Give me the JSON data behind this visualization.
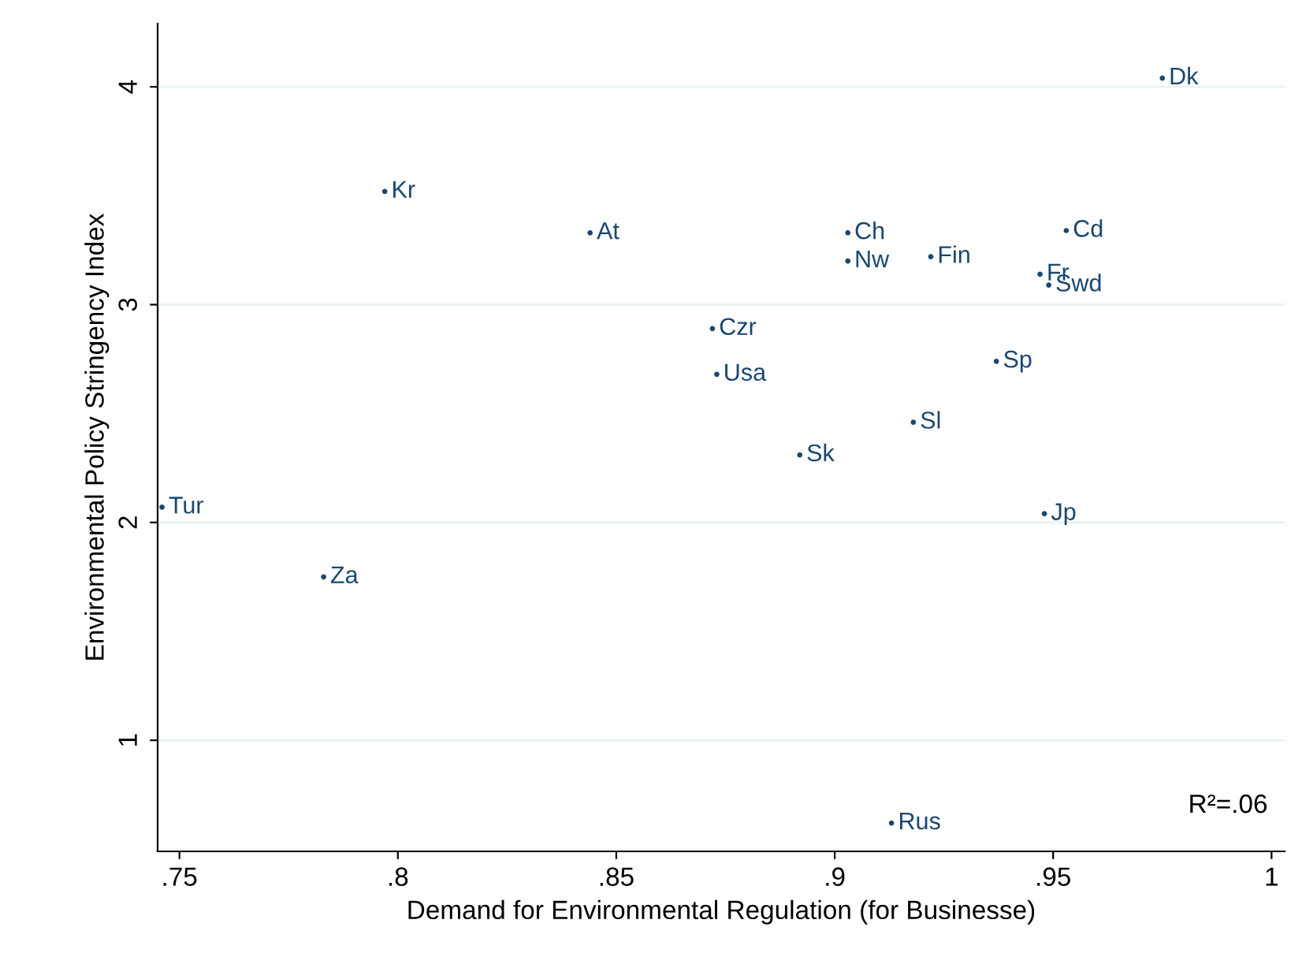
{
  "chart_data": {
    "type": "scatter",
    "xlabel": "Demand for Environmental Regulation (for Businesse)",
    "ylabel": "Environmental Policy Stringency Index",
    "x": [
      0.975,
      0.797,
      0.844,
      0.903,
      0.903,
      0.922,
      0.953,
      0.947,
      0.949,
      0.872,
      0.873,
      0.937,
      0.918,
      0.892,
      0.746,
      0.948,
      0.783,
      0.913
    ],
    "series": [
      {
        "color": "#1a476f",
        "values": [
          4.04,
          3.52,
          3.33,
          3.33,
          3.2,
          3.22,
          3.34,
          3.14,
          3.09,
          2.89,
          2.68,
          2.74,
          2.46,
          2.31,
          2.07,
          2.04,
          1.75,
          0.62
        ]
      }
    ],
    "value_labels": [
      "Dk",
      "Kr",
      "At",
      "Ch",
      "Nw",
      "Fin",
      "Cd",
      "Fr",
      "Swd",
      "Czr",
      "Usa",
      "Sp",
      "Sl",
      "Sk",
      "Tur",
      "Jp",
      "Za",
      "Rus"
    ],
    "annotations": [
      "R²=.06"
    ],
    "xlim": [
      0.745,
      1.003
    ],
    "ylim": [
      0.49,
      4.29
    ],
    "xticks": [
      {
        "value": 0.75,
        "label": ".75"
      },
      {
        "value": 0.8,
        "label": ".8"
      },
      {
        "value": 0.85,
        "label": ".85"
      },
      {
        "value": 0.9,
        "label": ".9"
      },
      {
        "value": 0.95,
        "label": ".95"
      },
      {
        "value": 1,
        "label": "1"
      }
    ],
    "yticks": [
      1,
      2,
      3,
      4
    ],
    "grid": "y",
    "marker": "circle",
    "legend": false
  }
}
